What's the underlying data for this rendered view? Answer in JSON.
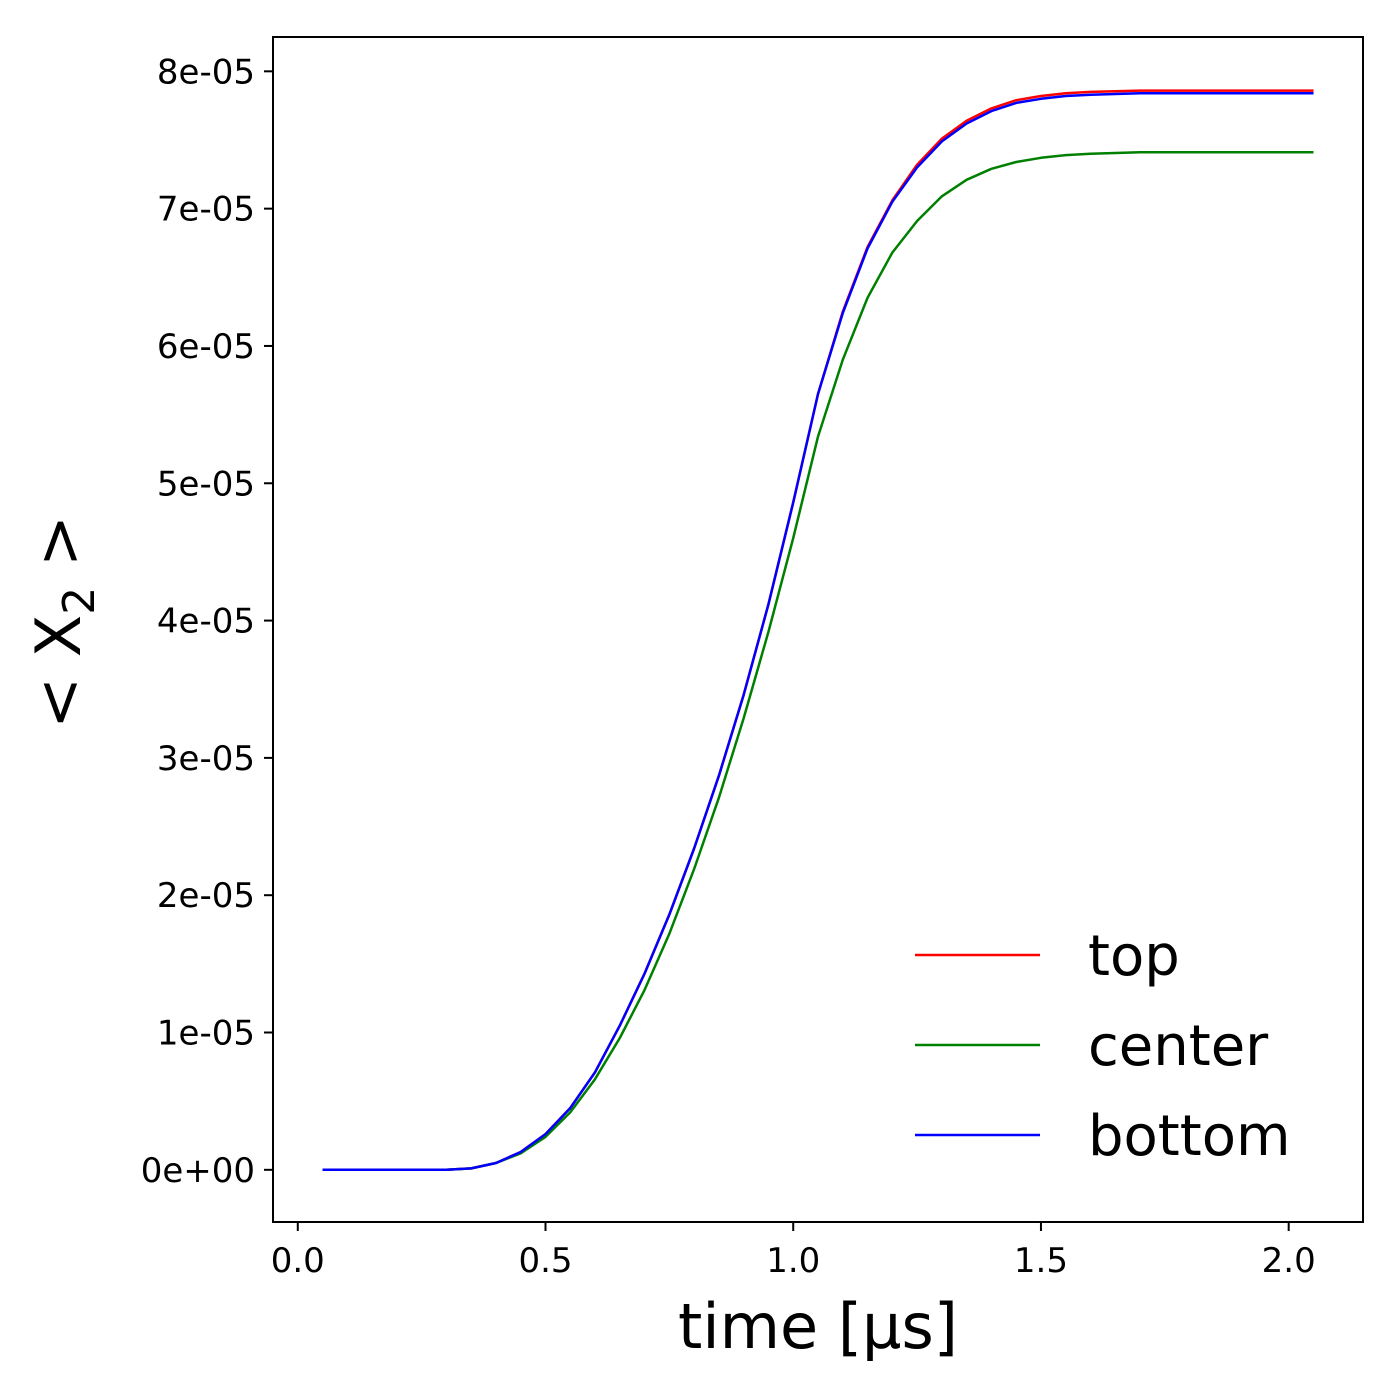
{
  "chart_data": {
    "type": "line",
    "xlabel": "time [µs]",
    "ylabel": {
      "prefix": "< X",
      "subscript": "2",
      "suffix": " >"
    },
    "xlim": [
      -0.05,
      2.15
    ],
    "ylim": [
      -3.8e-06,
      8.25e-05
    ],
    "xticks": [
      0.0,
      0.5,
      1.0,
      1.5,
      2.0
    ],
    "xtick_labels": [
      "0.0",
      "0.5",
      "1.0",
      "1.5",
      "2.0"
    ],
    "yticks": [
      0,
      1e-05,
      2e-05,
      3e-05,
      4e-05,
      5e-05,
      6e-05,
      7e-05,
      8e-05
    ],
    "ytick_labels": [
      "0e+00",
      "1e-05",
      "2e-05",
      "3e-05",
      "4e-05",
      "5e-05",
      "6e-05",
      "7e-05",
      "8e-05"
    ],
    "grid": false,
    "legend_position": "lower-right",
    "x": [
      0.05,
      0.1,
      0.15,
      0.2,
      0.25,
      0.3,
      0.35,
      0.4,
      0.45,
      0.5,
      0.55,
      0.6,
      0.65,
      0.7,
      0.75,
      0.8,
      0.85,
      0.9,
      0.95,
      1.0,
      1.05,
      1.1,
      1.15,
      1.2,
      1.25,
      1.3,
      1.35,
      1.4,
      1.45,
      1.5,
      1.55,
      1.6,
      1.65,
      1.7,
      1.75,
      1.8,
      1.85,
      1.9,
      1.95,
      2.0,
      2.05
    ],
    "series": [
      {
        "name": "top",
        "color": "#ff0000",
        "values": [
          0,
          0,
          0,
          0,
          0,
          0,
          1e-07,
          5e-07,
          1.3e-06,
          2.6e-06,
          4.5e-06,
          7.1e-06,
          1.05e-05,
          1.43e-05,
          1.86e-05,
          2.34e-05,
          2.87e-05,
          3.46e-05,
          4.12e-05,
          4.86e-05,
          5.65e-05,
          6.25e-05,
          6.72e-05,
          7.06e-05,
          7.32e-05,
          7.51e-05,
          7.64e-05,
          7.73e-05,
          7.79e-05,
          7.82e-05,
          7.84e-05,
          7.85e-05,
          7.855e-05,
          7.86e-05,
          7.86e-05,
          7.86e-05,
          7.86e-05,
          7.86e-05,
          7.86e-05,
          7.86e-05,
          7.86e-05
        ]
      },
      {
        "name": "center",
        "color": "#008000",
        "values": [
          0,
          0,
          0,
          0,
          0,
          0,
          1e-07,
          5e-07,
          1.2e-06,
          2.4e-06,
          4.2e-06,
          6.6e-06,
          9.6e-06,
          1.31e-05,
          1.72e-05,
          2.19e-05,
          2.71e-05,
          3.29e-05,
          3.92e-05,
          4.6e-05,
          5.34e-05,
          5.9e-05,
          6.35e-05,
          6.68e-05,
          6.91e-05,
          7.09e-05,
          7.21e-05,
          7.29e-05,
          7.34e-05,
          7.37e-05,
          7.39e-05,
          7.4e-05,
          7.405e-05,
          7.41e-05,
          7.41e-05,
          7.41e-05,
          7.41e-05,
          7.41e-05,
          7.41e-05,
          7.41e-05,
          7.41e-05
        ]
      },
      {
        "name": "bottom",
        "color": "#0000ff",
        "values": [
          0,
          0,
          0,
          0,
          0,
          0,
          1e-07,
          5e-07,
          1.3e-06,
          2.6e-06,
          4.5e-06,
          7.1e-06,
          1.05e-05,
          1.43e-05,
          1.86e-05,
          2.34e-05,
          2.87e-05,
          3.46e-05,
          4.12e-05,
          4.86e-05,
          5.65e-05,
          6.24e-05,
          6.71e-05,
          7.05e-05,
          7.3e-05,
          7.49e-05,
          7.62e-05,
          7.71e-05,
          7.77e-05,
          7.8e-05,
          7.82e-05,
          7.83e-05,
          7.835e-05,
          7.84e-05,
          7.84e-05,
          7.84e-05,
          7.84e-05,
          7.84e-05,
          7.84e-05,
          7.84e-05,
          7.84e-05
        ]
      }
    ]
  }
}
